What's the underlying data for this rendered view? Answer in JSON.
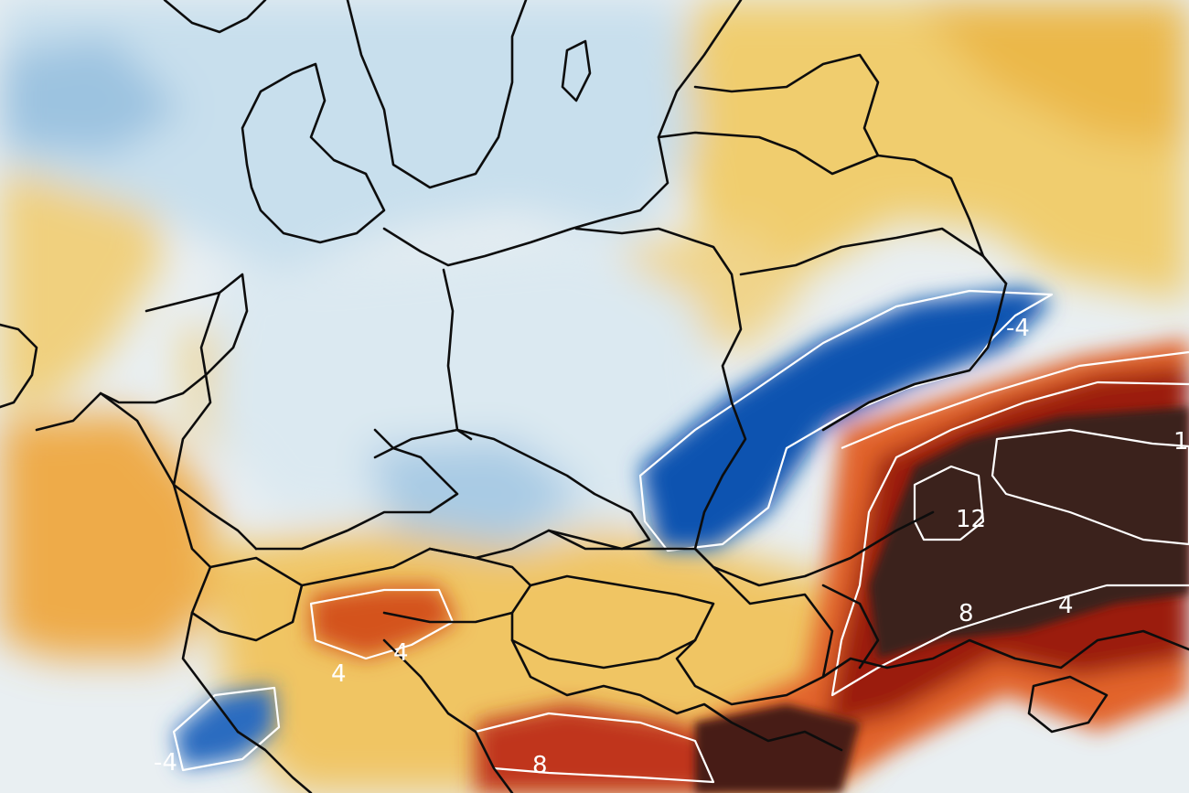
{
  "map": {
    "type": "temperature-anomaly",
    "colors": {
      "strong_cold": "#0b4aa8",
      "cold": "#7fb2db",
      "cool": "#cfe3ef",
      "neutral": "#eef3f5",
      "warm": "#f3d37a",
      "warmer": "#eea53e",
      "hot": "#d0481c",
      "very_hot": "#8e1a0c",
      "extreme": "#3a1f1c",
      "border": "#0d0d0d",
      "contour": "#ffffff"
    },
    "contour_labels": [
      {
        "id": "neg4-east",
        "text": "-4"
      },
      {
        "id": "pos12-left",
        "text": "12"
      },
      {
        "id": "pos12-right",
        "text": "1"
      },
      {
        "id": "pos8-east",
        "text": "8"
      },
      {
        "id": "pos4-east",
        "text": "4"
      },
      {
        "id": "pos4-alps",
        "text": "4"
      },
      {
        "id": "pos4-alps2",
        "text": "4"
      },
      {
        "id": "neg4-south",
        "text": "-4"
      },
      {
        "id": "pos8-balkan",
        "text": "8"
      }
    ]
  }
}
